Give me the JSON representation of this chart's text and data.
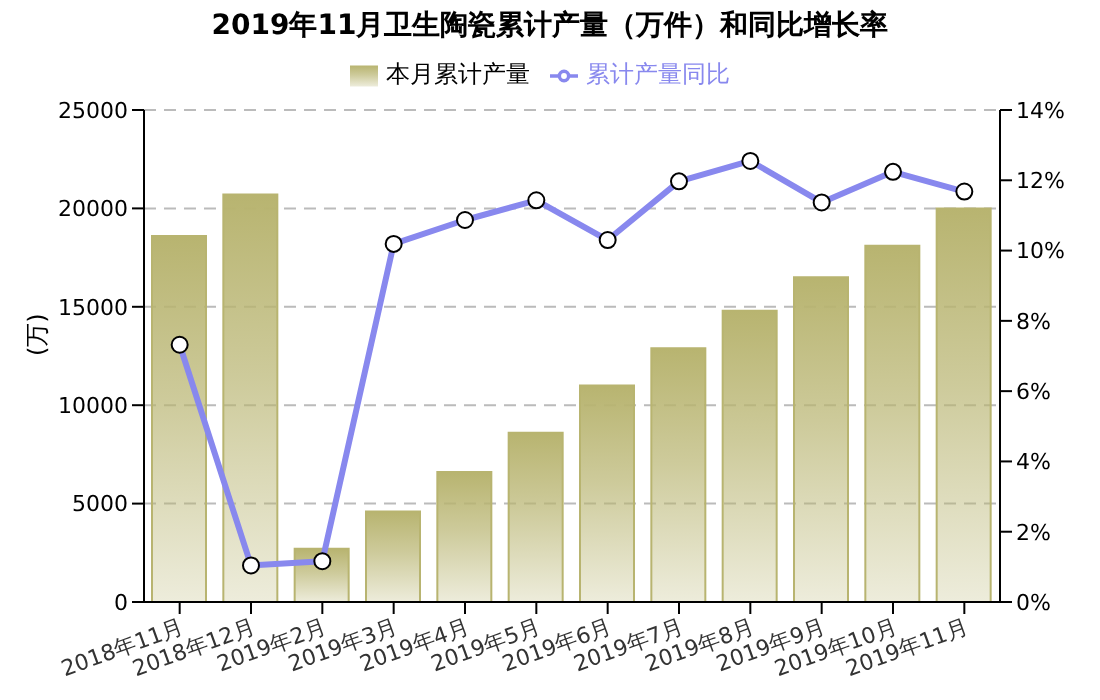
{
  "chart_data": {
    "type": "bar",
    "title": "2019年11月卫生陶瓷累计产量（万件）和同比增长率",
    "ylabel": "(万)",
    "categories": [
      "2018年11月",
      "2018年12月",
      "2019年2月",
      "2019年3月",
      "2019年4月",
      "2019年5月",
      "2019年6月",
      "2019年7月",
      "2019年8月",
      "2019年9月",
      "2019年10月",
      "2019年11月"
    ],
    "series": [
      {
        "name": "本月累计产量",
        "color": "#b8b470",
        "values": [
          18600,
          20700,
          2700,
          4600,
          6600,
          8600,
          11000,
          12900,
          14800,
          16500,
          18100,
          20000
        ]
      },
      {
        "name": "累计产量同比",
        "type": "line",
        "axis": "y2",
        "color": "#8888ee",
        "values": [
          7.32,
          1.04,
          1.16,
          10.19,
          10.87,
          11.43,
          10.3,
          11.97,
          12.55,
          11.37,
          12.24,
          11.68
        ]
      }
    ],
    "ylim": [
      0,
      25000
    ],
    "yticks": [
      0,
      5000,
      10000,
      15000,
      20000,
      25000
    ],
    "y2lim": [
      0,
      14
    ],
    "y2ticks": [
      {
        "value": 0,
        "label": "0%"
      },
      {
        "value": 2,
        "label": "2%"
      },
      {
        "value": 4,
        "label": "4%"
      },
      {
        "value": 6,
        "label": "6%"
      },
      {
        "value": 8,
        "label": "8%"
      },
      {
        "value": 10,
        "label": "10%"
      },
      {
        "value": 12,
        "label": "12%"
      },
      {
        "value": 14,
        "label": "14%"
      }
    ],
    "grid": "y",
    "legend": "top",
    "marker": "circle",
    "line_style": "solid"
  }
}
